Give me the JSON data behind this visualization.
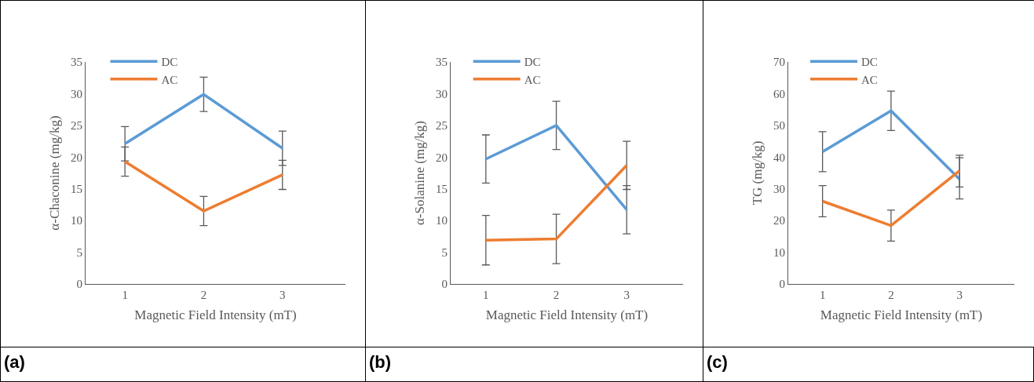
{
  "chart_data": [
    {
      "type": "line",
      "categories": [
        "1",
        "2",
        "3"
      ],
      "xlabel": "Magnetic Field Intensity (mT)",
      "ylabel": "α-Chaconine (mg/kg)",
      "ylim": [
        0,
        35
      ],
      "yticks": [
        0,
        5,
        10,
        15,
        20,
        25,
        30,
        35
      ],
      "grid": false,
      "legend": "top left",
      "marker": "none",
      "line_style": "solid",
      "annotations": [
        "(a)"
      ],
      "series": [
        {
          "name": "DC",
          "color": "#5b9bd5",
          "values": [
            22.1,
            29.9,
            21.4
          ],
          "errors": [
            2.7,
            2.7,
            2.7
          ]
        },
        {
          "name": "AC",
          "color": "#ed7d31",
          "values": [
            19.3,
            11.5,
            17.2
          ],
          "errors": [
            2.3,
            2.3,
            2.3
          ]
        }
      ]
    },
    {
      "type": "line",
      "categories": [
        "1",
        "2",
        "3"
      ],
      "xlabel": "Magnetic Field Intensity (mT)",
      "ylabel": "α-Solanine (mg/kg)",
      "ylim": [
        0,
        35
      ],
      "yticks": [
        0,
        5,
        10,
        15,
        20,
        25,
        30,
        35
      ],
      "grid": false,
      "legend": "top left",
      "marker": "none",
      "line_style": "solid",
      "annotations": [
        "(b)"
      ],
      "series": [
        {
          "name": "DC",
          "color": "#5b9bd5",
          "values": [
            19.7,
            25.0,
            11.7
          ],
          "errors": [
            3.8,
            3.8,
            3.8
          ]
        },
        {
          "name": "AC",
          "color": "#ed7d31",
          "values": [
            6.9,
            7.1,
            18.7
          ],
          "errors": [
            3.9,
            3.9,
            3.8
          ]
        }
      ]
    },
    {
      "type": "line",
      "categories": [
        "1",
        "2",
        "3"
      ],
      "xlabel": "Magnetic Field Intensity (mT)",
      "ylabel": "TG (mg/kg)",
      "ylim": [
        0,
        70
      ],
      "yticks": [
        0,
        10,
        20,
        30,
        40,
        50,
        60,
        70
      ],
      "grid": false,
      "legend": "top left",
      "marker": "none",
      "line_style": "solid",
      "annotations": [
        "(c)"
      ],
      "series": [
        {
          "name": "DC",
          "color": "#5b9bd5",
          "values": [
            41.7,
            54.6,
            33.0
          ],
          "errors": [
            6.3,
            6.2,
            [
              26.8,
              40.6
            ]
          ]
        },
        {
          "name": "AC",
          "color": "#ed7d31",
          "values": [
            26.1,
            18.4,
            35.7
          ],
          "errors": [
            4.9,
            4.9,
            [
              30.6,
              39.8
            ]
          ]
        }
      ]
    }
  ]
}
